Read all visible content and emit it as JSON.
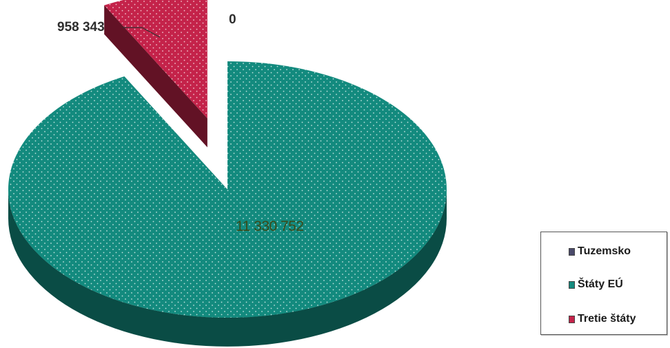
{
  "chart_data": {
    "type": "pie",
    "title": "",
    "slices": [
      {
        "label": "Tuzemsko",
        "value": 0,
        "value_label": "0",
        "color": "#4a4a6a"
      },
      {
        "label": "Štáty EÚ",
        "value": 11330752,
        "value_label": "11 330 752",
        "color": "#138a7e"
      },
      {
        "label": "Tretie štáty",
        "value": 958343,
        "value_label": "958 343",
        "color": "#c4234a"
      }
    ],
    "legend_placement": "bottom-right",
    "exploded_slice": "Tretie štáty",
    "style": "3d"
  },
  "legend": {
    "items": [
      {
        "label": "Tuzemsko",
        "color": "#4a4a6a"
      },
      {
        "label": "Štáty EÚ",
        "color": "#138a7e"
      },
      {
        "label": "Tretie štáty",
        "color": "#c4234a"
      }
    ]
  }
}
